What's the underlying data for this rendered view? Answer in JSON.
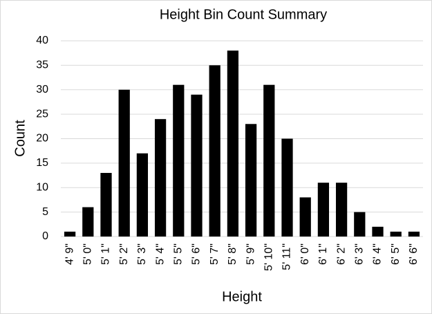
{
  "chart_data": {
    "type": "bar",
    "title": "Height Bin Count Summary",
    "x_label": "Height",
    "y_label": "Count",
    "categories": [
      "4' 9\"",
      "5' 0\"",
      "5' 1\"",
      "5' 2\"",
      "5' 3\"",
      "5' 4\"",
      "5' 5\"",
      "5' 6\"",
      "5' 7\"",
      "5' 8\"",
      "5' 9\"",
      "5' 10\"",
      "5' 11\"",
      "6' 0\"",
      "6' 1\"",
      "6' 2\"",
      "6' 3\"",
      "6' 4\"",
      "6' 5\"",
      "6' 6\""
    ],
    "values": [
      1,
      6,
      13,
      30,
      17,
      24,
      31,
      29,
      35,
      38,
      23,
      31,
      20,
      8,
      11,
      11,
      5,
      2,
      1,
      1
    ],
    "color": "#000000",
    "ylim": [
      0,
      40
    ],
    "yticks": [
      0,
      5,
      10,
      15,
      20,
      25,
      30,
      35,
      40
    ],
    "grid": true
  }
}
